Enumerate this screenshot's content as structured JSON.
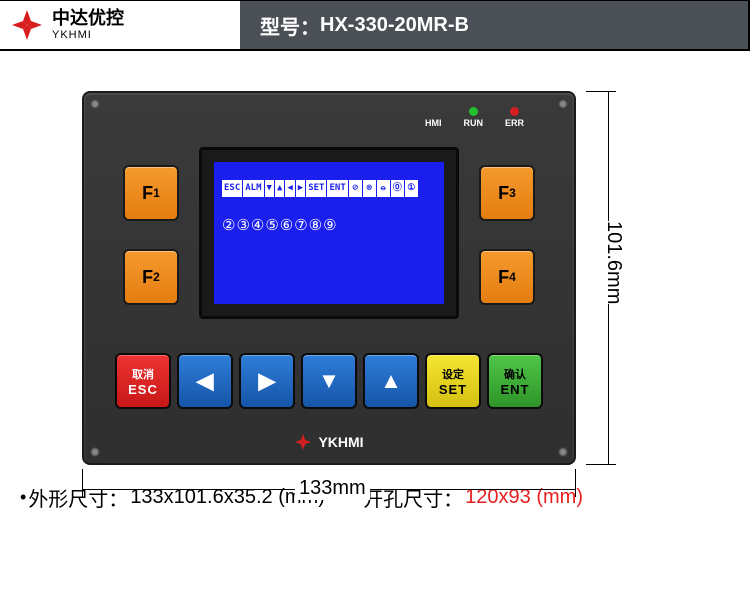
{
  "header": {
    "brand_cn": "中达优控",
    "brand_en": "YKHMI",
    "model_label": "型号：",
    "model_value": "HX-330-20MR-B",
    "logo_color": "#d81e1e"
  },
  "device": {
    "leds": [
      {
        "label": "HMI",
        "color": "#3a3a3a"
      },
      {
        "label": "RUN",
        "color": "#22c02a"
      },
      {
        "label": "ERR",
        "color": "#d81e1e"
      }
    ],
    "f_buttons": {
      "left": [
        "F₁",
        "F₂"
      ],
      "right": [
        "F₃",
        "F₄"
      ],
      "bg": "#f08a1c"
    },
    "lcd": {
      "bg": "#1b1fed",
      "row1_tags": [
        "ESC",
        "ALM",
        "▼",
        "▲",
        "◀",
        "▶",
        "SET",
        "ENT"
      ],
      "row1_syms": [
        "⊘",
        "⊗",
        "⦵",
        "⓪",
        "①"
      ],
      "row2": "②③④⑤⑥⑦⑧⑨"
    },
    "bottom_buttons": [
      {
        "cn": "取消",
        "en": "ESC",
        "style": "bbtn-red"
      },
      {
        "arrow": "◀",
        "style": "bbtn-blue"
      },
      {
        "arrow": "▶",
        "style": "bbtn-blue"
      },
      {
        "arrow": "▼",
        "style": "bbtn-blue"
      },
      {
        "arrow": "▲",
        "style": "bbtn-blue"
      },
      {
        "cn": "设定",
        "en": "SET",
        "style": "bbtn-yellow"
      },
      {
        "cn": "确认",
        "en": "ENT",
        "style": "bbtn-green"
      }
    ],
    "brand_bottom": "YKHMI",
    "brand_bottom_color": "#d81e1e"
  },
  "dimensions": {
    "width_label": "133mm",
    "height_label": "101.6mm"
  },
  "specs": {
    "outline_label": "外形尺寸：",
    "outline_value": "133x101.6x35.2 (mm)",
    "cutout_label": "开孔尺寸：",
    "cutout_value": "120x93 (mm)"
  }
}
